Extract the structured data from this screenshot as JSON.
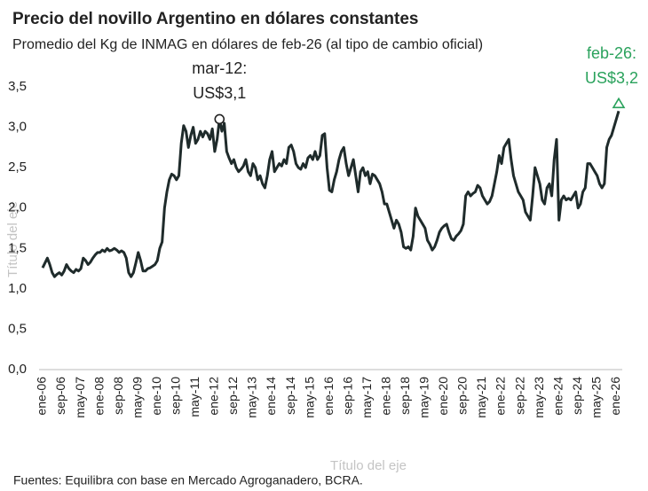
{
  "chart_data": {
    "type": "line",
    "title": "Precio del novillo Argentino en dólares constantes",
    "subtitle": "Promedio del Kg de INMAG en dólares de feb-26 (al tipo de cambio oficial)",
    "x_label": "Título del eje",
    "y_label": "Título del eje",
    "source": "Fuentes: Equilibra con base en Mercado Agroganadero, BCRA.",
    "categories": [
      "ene-06",
      null,
      null,
      null,
      null,
      null,
      null,
      null,
      "sep-06",
      null,
      null,
      null,
      null,
      null,
      null,
      null,
      "may-07",
      null,
      null,
      null,
      null,
      null,
      null,
      null,
      "ene-08",
      null,
      null,
      null,
      null,
      null,
      null,
      null,
      "sep-08",
      null,
      null,
      null,
      null,
      null,
      null,
      null,
      "may-09",
      null,
      null,
      null,
      null,
      null,
      null,
      null,
      "ene-10",
      null,
      null,
      null,
      null,
      null,
      null,
      null,
      "sep-10",
      null,
      null,
      null,
      null,
      null,
      null,
      null,
      "may-11",
      null,
      null,
      null,
      null,
      null,
      null,
      null,
      "ene-12",
      null,
      null,
      null,
      null,
      null,
      null,
      null,
      "sep-12",
      null,
      null,
      null,
      null,
      null,
      null,
      null,
      "may-13",
      null,
      null,
      null,
      null,
      null,
      null,
      null,
      "ene-14",
      null,
      null,
      null,
      null,
      null,
      null,
      null,
      "sep-14",
      null,
      null,
      null,
      null,
      null,
      null,
      null,
      "may-15",
      null,
      null,
      null,
      null,
      null,
      null,
      null,
      "ene-16",
      null,
      null,
      null,
      null,
      null,
      null,
      null,
      "sep-16",
      null,
      null,
      null,
      null,
      null,
      null,
      null,
      "may-17",
      null,
      null,
      null,
      null,
      null,
      null,
      null,
      "ene-18",
      null,
      null,
      null,
      null,
      null,
      null,
      null,
      "sep-18",
      null,
      null,
      null,
      null,
      null,
      null,
      null,
      "may-19",
      null,
      null,
      null,
      null,
      null,
      null,
      null,
      "ene-20",
      null,
      null,
      null,
      null,
      null,
      null,
      null,
      "sep-20",
      null,
      null,
      null,
      null,
      null,
      null,
      null,
      "may-21",
      null,
      null,
      null,
      null,
      null,
      null,
      null,
      "ene-22",
      null,
      null,
      null,
      null,
      null,
      null,
      null,
      "sep-22",
      null,
      null,
      null,
      null,
      null,
      null,
      null,
      "may-23",
      null,
      null,
      null,
      null,
      null,
      null,
      null,
      "ene-24",
      null,
      null,
      null,
      null,
      null,
      null,
      null,
      "sep-24",
      null,
      null,
      null,
      null,
      null,
      null,
      null,
      "may-25",
      null,
      null,
      null,
      null,
      null,
      null,
      null,
      "ene-26",
      null
    ],
    "series": [
      {
        "color": "#1f2b2b",
        "values": [
          1.26,
          1.32,
          1.38,
          1.3,
          1.2,
          1.15,
          1.18,
          1.2,
          1.17,
          1.22,
          1.3,
          1.25,
          1.22,
          1.2,
          1.24,
          1.22,
          1.25,
          1.38,
          1.35,
          1.3,
          1.33,
          1.38,
          1.42,
          1.45,
          1.45,
          1.48,
          1.46,
          1.5,
          1.47,
          1.48,
          1.5,
          1.48,
          1.45,
          1.47,
          1.45,
          1.38,
          1.2,
          1.15,
          1.2,
          1.32,
          1.45,
          1.35,
          1.22,
          1.22,
          1.25,
          1.26,
          1.28,
          1.3,
          1.35,
          1.5,
          1.58,
          2.0,
          2.2,
          2.35,
          2.42,
          2.4,
          2.35,
          2.4,
          2.8,
          3.02,
          2.95,
          2.75,
          2.9,
          3.0,
          2.8,
          2.85,
          2.95,
          2.88,
          2.95,
          2.92,
          2.85,
          2.98,
          2.7,
          2.85,
          3.1,
          2.95,
          3.05,
          2.7,
          2.62,
          2.55,
          2.6,
          2.5,
          2.45,
          2.48,
          2.52,
          2.6,
          2.45,
          2.4,
          2.55,
          2.5,
          2.35,
          2.4,
          2.3,
          2.25,
          2.4,
          2.6,
          2.7,
          2.45,
          2.5,
          2.55,
          2.52,
          2.6,
          2.55,
          2.75,
          2.78,
          2.7,
          2.55,
          2.5,
          2.48,
          2.55,
          2.5,
          2.62,
          2.65,
          2.6,
          2.7,
          2.6,
          2.65,
          2.9,
          2.92,
          2.5,
          2.22,
          2.2,
          2.35,
          2.45,
          2.6,
          2.7,
          2.75,
          2.55,
          2.4,
          2.5,
          2.6,
          2.4,
          2.2,
          2.45,
          2.5,
          2.4,
          2.45,
          2.3,
          2.42,
          2.4,
          2.35,
          2.3,
          2.2,
          2.05,
          2.05,
          1.95,
          1.85,
          1.75,
          1.85,
          1.8,
          1.7,
          1.52,
          1.5,
          1.52,
          1.48,
          1.65,
          2.0,
          1.9,
          1.85,
          1.8,
          1.75,
          1.6,
          1.55,
          1.48,
          1.52,
          1.6,
          1.7,
          1.75,
          1.78,
          1.8,
          1.7,
          1.62,
          1.6,
          1.65,
          1.68,
          1.72,
          1.8,
          2.15,
          2.2,
          2.15,
          2.18,
          2.2,
          2.28,
          2.25,
          2.15,
          2.1,
          2.05,
          2.08,
          2.15,
          2.3,
          2.45,
          2.65,
          2.55,
          2.75,
          2.8,
          2.85,
          2.6,
          2.4,
          2.3,
          2.2,
          2.15,
          2.1,
          1.95,
          1.9,
          1.85,
          2.15,
          2.5,
          2.4,
          2.3,
          2.1,
          2.05,
          2.25,
          2.3,
          2.15,
          2.6,
          2.85,
          1.85,
          2.1,
          2.15,
          2.1,
          2.12,
          2.1,
          2.15,
          2.2,
          2.0,
          2.05,
          2.2,
          2.25,
          2.55,
          2.55,
          2.5,
          2.45,
          2.4,
          2.3,
          2.25,
          2.3,
          2.75,
          2.85,
          2.9,
          3.0,
          3.1,
          3.2
        ]
      }
    ],
    "ylim": [
      0,
      3.5
    ],
    "yticks": [
      {
        "value": 0,
        "label": "0,0"
      },
      {
        "value": 0.5,
        "label": "0,5"
      },
      {
        "value": 1,
        "label": "1,0"
      },
      {
        "value": 1.5,
        "label": "1,5"
      },
      {
        "value": 2,
        "label": "2,0"
      },
      {
        "value": 2.5,
        "label": "2,5"
      },
      {
        "value": 3,
        "label": "3,0"
      },
      {
        "value": 3.5,
        "label": "3,5"
      }
    ],
    "grid": false,
    "annotations": [
      {
        "lines": [
          "mar-12:",
          "US$3,1"
        ],
        "color": "#222222"
      },
      {
        "lines": [
          "feb-26:",
          "US$3,2"
        ],
        "color": "#2aa25c"
      }
    ]
  }
}
